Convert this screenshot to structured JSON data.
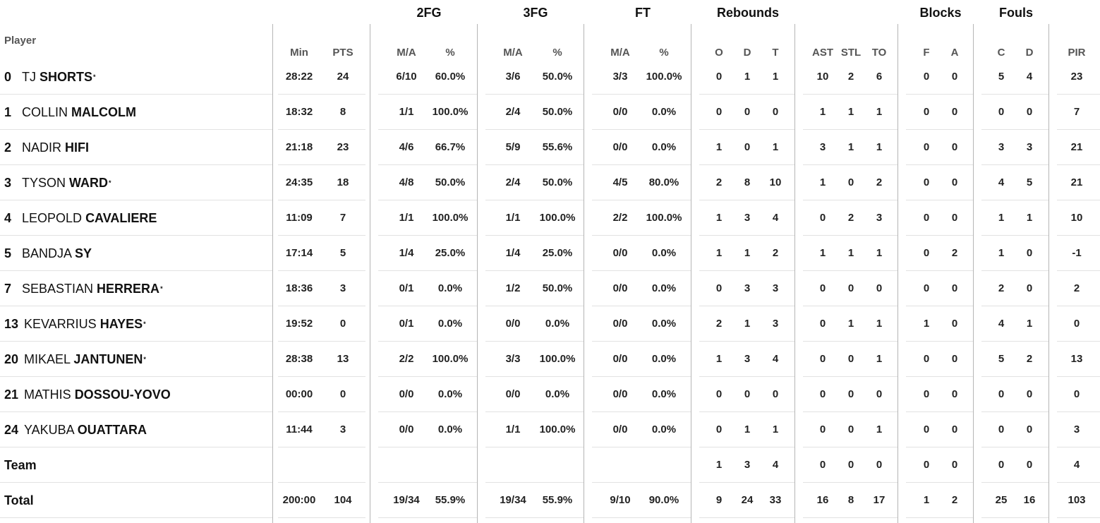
{
  "header": {
    "groups": [
      "2FG",
      "3FG",
      "FT",
      "Rebounds",
      "Blocks",
      "Fouls"
    ],
    "player_label": "Player",
    "subheaders": [
      "Min",
      "PTS",
      "M/A",
      "%",
      "M/A",
      "%",
      "M/A",
      "%",
      "O",
      "D",
      "T",
      "AST",
      "STL",
      "TO",
      "F",
      "A",
      "C",
      "D",
      "PIR"
    ],
    "star_symbol": "*"
  },
  "players": [
    {
      "number": "0",
      "first": "TJ",
      "last": "SHORTS",
      "starter": true,
      "stats": [
        "28:22",
        "24",
        "6/10",
        "60.0%",
        "3/6",
        "50.0%",
        "3/3",
        "100.0%",
        "0",
        "1",
        "1",
        "10",
        "2",
        "6",
        "0",
        "0",
        "5",
        "4",
        "23"
      ]
    },
    {
      "number": "1",
      "first": "COLLIN",
      "last": "MALCOLM",
      "starter": false,
      "stats": [
        "18:32",
        "8",
        "1/1",
        "100.0%",
        "2/4",
        "50.0%",
        "0/0",
        "0.0%",
        "0",
        "0",
        "0",
        "1",
        "1",
        "1",
        "0",
        "0",
        "0",
        "0",
        "7"
      ]
    },
    {
      "number": "2",
      "first": "NADIR",
      "last": "HIFI",
      "starter": false,
      "stats": [
        "21:18",
        "23",
        "4/6",
        "66.7%",
        "5/9",
        "55.6%",
        "0/0",
        "0.0%",
        "1",
        "0",
        "1",
        "3",
        "1",
        "1",
        "0",
        "0",
        "3",
        "3",
        "21"
      ]
    },
    {
      "number": "3",
      "first": "TYSON",
      "last": "WARD",
      "starter": true,
      "stats": [
        "24:35",
        "18",
        "4/8",
        "50.0%",
        "2/4",
        "50.0%",
        "4/5",
        "80.0%",
        "2",
        "8",
        "10",
        "1",
        "0",
        "2",
        "0",
        "0",
        "4",
        "5",
        "21"
      ]
    },
    {
      "number": "4",
      "first": "LEOPOLD",
      "last": "CAVALIERE",
      "starter": false,
      "stats": [
        "11:09",
        "7",
        "1/1",
        "100.0%",
        "1/1",
        "100.0%",
        "2/2",
        "100.0%",
        "1",
        "3",
        "4",
        "0",
        "2",
        "3",
        "0",
        "0",
        "1",
        "1",
        "10"
      ]
    },
    {
      "number": "5",
      "first": "BANDJA",
      "last": "SY",
      "starter": false,
      "stats": [
        "17:14",
        "5",
        "1/4",
        "25.0%",
        "1/4",
        "25.0%",
        "0/0",
        "0.0%",
        "1",
        "1",
        "2",
        "1",
        "1",
        "1",
        "0",
        "2",
        "1",
        "0",
        "-1"
      ]
    },
    {
      "number": "7",
      "first": "SEBASTIAN",
      "last": "HERRERA",
      "starter": true,
      "stats": [
        "18:36",
        "3",
        "0/1",
        "0.0%",
        "1/2",
        "50.0%",
        "0/0",
        "0.0%",
        "0",
        "3",
        "3",
        "0",
        "0",
        "0",
        "0",
        "0",
        "2",
        "0",
        "2"
      ]
    },
    {
      "number": "13",
      "first": "KEVARRIUS",
      "last": "HAYES",
      "starter": true,
      "stats": [
        "19:52",
        "0",
        "0/1",
        "0.0%",
        "0/0",
        "0.0%",
        "0/0",
        "0.0%",
        "2",
        "1",
        "3",
        "0",
        "1",
        "1",
        "1",
        "0",
        "4",
        "1",
        "0"
      ]
    },
    {
      "number": "20",
      "first": "MIKAEL",
      "last": "JANTUNEN",
      "starter": true,
      "stats": [
        "28:38",
        "13",
        "2/2",
        "100.0%",
        "3/3",
        "100.0%",
        "0/0",
        "0.0%",
        "1",
        "3",
        "4",
        "0",
        "0",
        "1",
        "0",
        "0",
        "5",
        "2",
        "13"
      ]
    },
    {
      "number": "21",
      "first": "MATHIS",
      "last": "DOSSOU-YOVO",
      "starter": false,
      "stats": [
        "00:00",
        "0",
        "0/0",
        "0.0%",
        "0/0",
        "0.0%",
        "0/0",
        "0.0%",
        "0",
        "0",
        "0",
        "0",
        "0",
        "0",
        "0",
        "0",
        "0",
        "0",
        "0"
      ]
    },
    {
      "number": "24",
      "first": "YAKUBA",
      "last": "OUATTARA",
      "starter": false,
      "stats": [
        "11:44",
        "3",
        "0/0",
        "0.0%",
        "1/1",
        "100.0%",
        "0/0",
        "0.0%",
        "0",
        "1",
        "1",
        "0",
        "0",
        "1",
        "0",
        "0",
        "0",
        "0",
        "3"
      ]
    }
  ],
  "team": {
    "label": "Team",
    "stats": [
      "",
      "",
      "",
      "",
      "",
      "",
      "",
      "",
      "1",
      "3",
      "4",
      "0",
      "0",
      "0",
      "0",
      "0",
      "0",
      "0",
      "4"
    ]
  },
  "total": {
    "label": "Total",
    "stats": [
      "200:00",
      "104",
      "19/34",
      "55.9%",
      "19/34",
      "55.9%",
      "9/10",
      "90.0%",
      "9",
      "24",
      "33",
      "16",
      "8",
      "17",
      "1",
      "2",
      "25",
      "16",
      "103"
    ]
  }
}
